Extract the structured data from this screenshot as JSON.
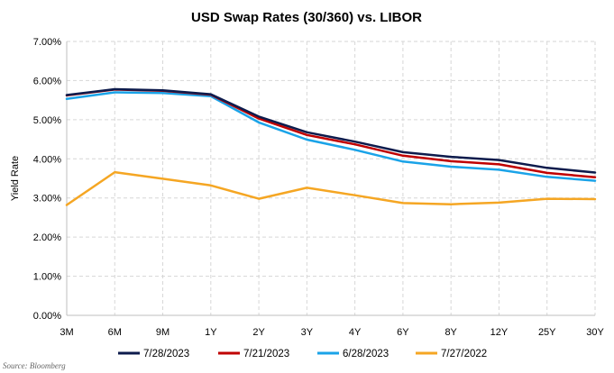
{
  "chart_data": {
    "type": "line",
    "title": "USD Swap Rates (30/360) vs. LIBOR",
    "xlabel": "",
    "ylabel": "Yield Rate",
    "categories": [
      "3M",
      "6M",
      "9M",
      "1Y",
      "2Y",
      "3Y",
      "4Y",
      "6Y",
      "8Y",
      "12Y",
      "25Y",
      "30Y"
    ],
    "ylim": [
      0,
      7
    ],
    "yticks": [
      0,
      1,
      2,
      3,
      4,
      5,
      6,
      7
    ],
    "ytick_labels": [
      "0.00%",
      "1.00%",
      "2.00%",
      "3.00%",
      "4.00%",
      "5.00%",
      "6.00%",
      "7.00%"
    ],
    "grid": "dashed",
    "legend_position": "bottom",
    "series": [
      {
        "name": "7/28/2023",
        "color": "#0d1b4c",
        "values": [
          5.63,
          5.78,
          5.75,
          5.65,
          5.08,
          4.68,
          4.44,
          4.17,
          4.05,
          3.97,
          3.77,
          3.65
        ]
      },
      {
        "name": "7/21/2023",
        "color": "#c00000",
        "values": [
          5.62,
          5.77,
          5.74,
          5.64,
          5.03,
          4.61,
          4.37,
          4.08,
          3.94,
          3.86,
          3.64,
          3.53
        ]
      },
      {
        "name": "6/28/2023",
        "color": "#1aa3e8",
        "values": [
          5.53,
          5.7,
          5.68,
          5.6,
          4.93,
          4.49,
          4.23,
          3.93,
          3.8,
          3.72,
          3.54,
          3.44
        ]
      },
      {
        "name": "7/27/2022",
        "color": "#f5a623",
        "values": [
          2.82,
          3.66,
          3.49,
          3.32,
          2.98,
          3.26,
          3.07,
          2.87,
          2.84,
          2.88,
          2.98,
          2.97
        ]
      }
    ]
  },
  "source_label": "Source: Bloomberg"
}
